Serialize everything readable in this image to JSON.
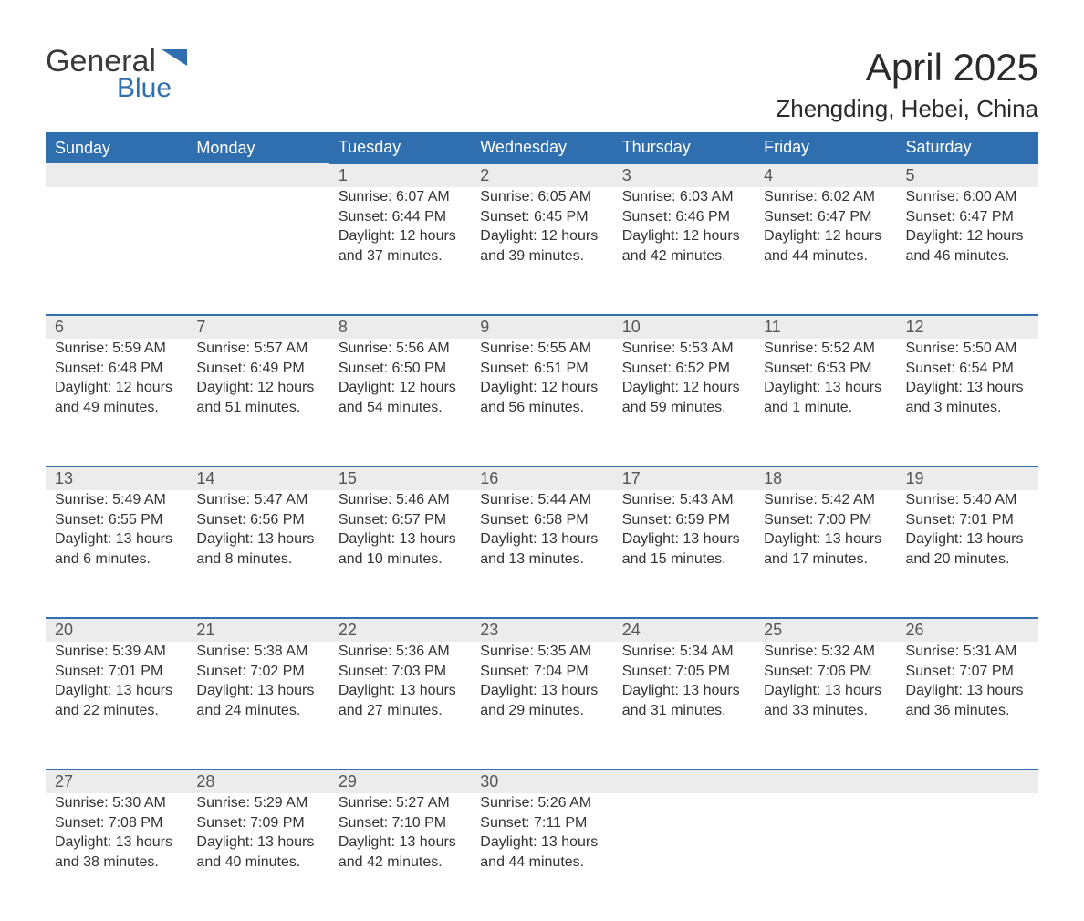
{
  "brand": {
    "name_a": "General",
    "name_b": "Blue",
    "icon_color": "#2f6fb0"
  },
  "title": "April 2025",
  "location": "Zhengding, Hebei, China",
  "colors": {
    "header_bg": "#2f6fb0",
    "header_text": "#ffffff",
    "daynum_bg": "#ececec",
    "row_border": "#2f6fb0",
    "body_text": "#333333",
    "page_bg": "#ffffff"
  },
  "typography": {
    "title_size": 42,
    "location_size": 26,
    "header_size": 18,
    "cell_size": 16
  },
  "weekdays": [
    "Sunday",
    "Monday",
    "Tuesday",
    "Wednesday",
    "Thursday",
    "Friday",
    "Saturday"
  ],
  "weeks": [
    [
      null,
      null,
      {
        "d": "1",
        "sr": "Sunrise: 6:07 AM",
        "ss": "Sunset: 6:44 PM",
        "dl1": "Daylight: 12 hours",
        "dl2": "and 37 minutes."
      },
      {
        "d": "2",
        "sr": "Sunrise: 6:05 AM",
        "ss": "Sunset: 6:45 PM",
        "dl1": "Daylight: 12 hours",
        "dl2": "and 39 minutes."
      },
      {
        "d": "3",
        "sr": "Sunrise: 6:03 AM",
        "ss": "Sunset: 6:46 PM",
        "dl1": "Daylight: 12 hours",
        "dl2": "and 42 minutes."
      },
      {
        "d": "4",
        "sr": "Sunrise: 6:02 AM",
        "ss": "Sunset: 6:47 PM",
        "dl1": "Daylight: 12 hours",
        "dl2": "and 44 minutes."
      },
      {
        "d": "5",
        "sr": "Sunrise: 6:00 AM",
        "ss": "Sunset: 6:47 PM",
        "dl1": "Daylight: 12 hours",
        "dl2": "and 46 minutes."
      }
    ],
    [
      {
        "d": "6",
        "sr": "Sunrise: 5:59 AM",
        "ss": "Sunset: 6:48 PM",
        "dl1": "Daylight: 12 hours",
        "dl2": "and 49 minutes."
      },
      {
        "d": "7",
        "sr": "Sunrise: 5:57 AM",
        "ss": "Sunset: 6:49 PM",
        "dl1": "Daylight: 12 hours",
        "dl2": "and 51 minutes."
      },
      {
        "d": "8",
        "sr": "Sunrise: 5:56 AM",
        "ss": "Sunset: 6:50 PM",
        "dl1": "Daylight: 12 hours",
        "dl2": "and 54 minutes."
      },
      {
        "d": "9",
        "sr": "Sunrise: 5:55 AM",
        "ss": "Sunset: 6:51 PM",
        "dl1": "Daylight: 12 hours",
        "dl2": "and 56 minutes."
      },
      {
        "d": "10",
        "sr": "Sunrise: 5:53 AM",
        "ss": "Sunset: 6:52 PM",
        "dl1": "Daylight: 12 hours",
        "dl2": "and 59 minutes."
      },
      {
        "d": "11",
        "sr": "Sunrise: 5:52 AM",
        "ss": "Sunset: 6:53 PM",
        "dl1": "Daylight: 13 hours",
        "dl2": "and 1 minute."
      },
      {
        "d": "12",
        "sr": "Sunrise: 5:50 AM",
        "ss": "Sunset: 6:54 PM",
        "dl1": "Daylight: 13 hours",
        "dl2": "and 3 minutes."
      }
    ],
    [
      {
        "d": "13",
        "sr": "Sunrise: 5:49 AM",
        "ss": "Sunset: 6:55 PM",
        "dl1": "Daylight: 13 hours",
        "dl2": "and 6 minutes."
      },
      {
        "d": "14",
        "sr": "Sunrise: 5:47 AM",
        "ss": "Sunset: 6:56 PM",
        "dl1": "Daylight: 13 hours",
        "dl2": "and 8 minutes."
      },
      {
        "d": "15",
        "sr": "Sunrise: 5:46 AM",
        "ss": "Sunset: 6:57 PM",
        "dl1": "Daylight: 13 hours",
        "dl2": "and 10 minutes."
      },
      {
        "d": "16",
        "sr": "Sunrise: 5:44 AM",
        "ss": "Sunset: 6:58 PM",
        "dl1": "Daylight: 13 hours",
        "dl2": "and 13 minutes."
      },
      {
        "d": "17",
        "sr": "Sunrise: 5:43 AM",
        "ss": "Sunset: 6:59 PM",
        "dl1": "Daylight: 13 hours",
        "dl2": "and 15 minutes."
      },
      {
        "d": "18",
        "sr": "Sunrise: 5:42 AM",
        "ss": "Sunset: 7:00 PM",
        "dl1": "Daylight: 13 hours",
        "dl2": "and 17 minutes."
      },
      {
        "d": "19",
        "sr": "Sunrise: 5:40 AM",
        "ss": "Sunset: 7:01 PM",
        "dl1": "Daylight: 13 hours",
        "dl2": "and 20 minutes."
      }
    ],
    [
      {
        "d": "20",
        "sr": "Sunrise: 5:39 AM",
        "ss": "Sunset: 7:01 PM",
        "dl1": "Daylight: 13 hours",
        "dl2": "and 22 minutes."
      },
      {
        "d": "21",
        "sr": "Sunrise: 5:38 AM",
        "ss": "Sunset: 7:02 PM",
        "dl1": "Daylight: 13 hours",
        "dl2": "and 24 minutes."
      },
      {
        "d": "22",
        "sr": "Sunrise: 5:36 AM",
        "ss": "Sunset: 7:03 PM",
        "dl1": "Daylight: 13 hours",
        "dl2": "and 27 minutes."
      },
      {
        "d": "23",
        "sr": "Sunrise: 5:35 AM",
        "ss": "Sunset: 7:04 PM",
        "dl1": "Daylight: 13 hours",
        "dl2": "and 29 minutes."
      },
      {
        "d": "24",
        "sr": "Sunrise: 5:34 AM",
        "ss": "Sunset: 7:05 PM",
        "dl1": "Daylight: 13 hours",
        "dl2": "and 31 minutes."
      },
      {
        "d": "25",
        "sr": "Sunrise: 5:32 AM",
        "ss": "Sunset: 7:06 PM",
        "dl1": "Daylight: 13 hours",
        "dl2": "and 33 minutes."
      },
      {
        "d": "26",
        "sr": "Sunrise: 5:31 AM",
        "ss": "Sunset: 7:07 PM",
        "dl1": "Daylight: 13 hours",
        "dl2": "and 36 minutes."
      }
    ],
    [
      {
        "d": "27",
        "sr": "Sunrise: 5:30 AM",
        "ss": "Sunset: 7:08 PM",
        "dl1": "Daylight: 13 hours",
        "dl2": "and 38 minutes."
      },
      {
        "d": "28",
        "sr": "Sunrise: 5:29 AM",
        "ss": "Sunset: 7:09 PM",
        "dl1": "Daylight: 13 hours",
        "dl2": "and 40 minutes."
      },
      {
        "d": "29",
        "sr": "Sunrise: 5:27 AM",
        "ss": "Sunset: 7:10 PM",
        "dl1": "Daylight: 13 hours",
        "dl2": "and 42 minutes."
      },
      {
        "d": "30",
        "sr": "Sunrise: 5:26 AM",
        "ss": "Sunset: 7:11 PM",
        "dl1": "Daylight: 13 hours",
        "dl2": "and 44 minutes."
      },
      null,
      null,
      null
    ]
  ]
}
